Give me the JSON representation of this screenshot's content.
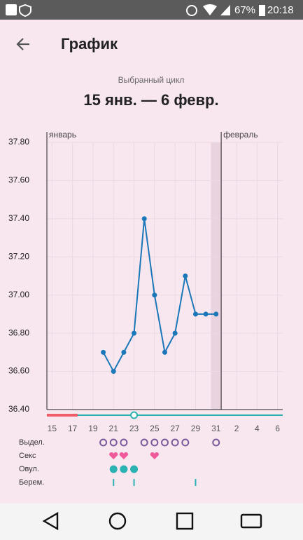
{
  "status_bar": {
    "battery": "67%",
    "time": "20:18"
  },
  "header": {
    "title": "График"
  },
  "cycle": {
    "caption": "Выбранный цикл",
    "range": "15 янв. — 6 февр."
  },
  "chart_data": {
    "type": "line",
    "month_labels": [
      "январь",
      "февраль"
    ],
    "month_starts": [
      -0.5,
      16.5
    ],
    "xlim": [
      -0.5,
      22.5
    ],
    "xticks": [
      {
        "value": 0,
        "label": "15"
      },
      {
        "value": 2,
        "label": "17"
      },
      {
        "value": 4,
        "label": "19"
      },
      {
        "value": 6,
        "label": "21"
      },
      {
        "value": 8,
        "label": "23"
      },
      {
        "value": 10,
        "label": "25"
      },
      {
        "value": 12,
        "label": "27"
      },
      {
        "value": 14,
        "label": "29"
      },
      {
        "value": 16,
        "label": "31"
      },
      {
        "value": 18,
        "label": "2"
      },
      {
        "value": 20,
        "label": "4"
      },
      {
        "value": 22,
        "label": "6"
      }
    ],
    "ylim": [
      36.4,
      37.8
    ],
    "yticks": [
      {
        "value": 36.4,
        "label": "36.40"
      },
      {
        "value": 36.6,
        "label": "36.60"
      },
      {
        "value": 36.8,
        "label": "36.80"
      },
      {
        "value": 37.0,
        "label": "37.00"
      },
      {
        "value": 37.2,
        "label": "37.20"
      },
      {
        "value": 37.4,
        "label": "37.40"
      },
      {
        "value": 37.6,
        "label": "37.60"
      },
      {
        "value": 37.8,
        "label": "37.80"
      }
    ],
    "grid": true,
    "highlight": 16,
    "series": [
      {
        "color": "#1b78b8",
        "x": [
          5,
          6,
          7,
          8,
          9,
          10,
          11,
          12,
          13,
          14,
          15,
          16
        ],
        "values": [
          36.7,
          36.6,
          36.7,
          36.8,
          37.4,
          37.0,
          36.7,
          36.8,
          37.1,
          36.9,
          36.9,
          36.9
        ]
      }
    ],
    "period_end": 2.5,
    "today": 8,
    "rows": [
      {
        "label": "Выдел.",
        "days": [
          5,
          6,
          7,
          9,
          10,
          11,
          12,
          13,
          16
        ]
      },
      {
        "label": "Секс",
        "days": [
          6,
          7,
          10
        ]
      },
      {
        "label": "Овул.",
        "days": [
          6,
          7,
          8
        ]
      },
      {
        "label": "Берем.",
        "days": [
          6,
          8,
          14
        ]
      }
    ]
  }
}
